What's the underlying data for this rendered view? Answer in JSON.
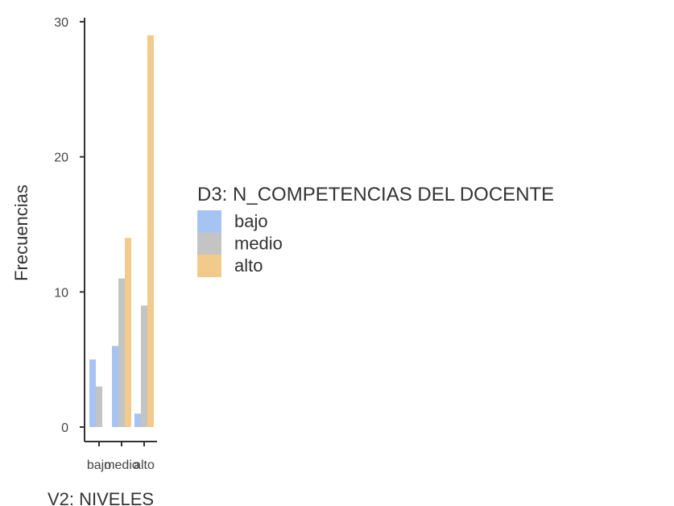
{
  "chart_data": {
    "type": "bar",
    "categories": [
      "bajo",
      "medio",
      "alto"
    ],
    "series": [
      {
        "name": "bajo",
        "values": [
          5,
          6,
          1
        ],
        "color": "#a6c4f2"
      },
      {
        "name": "medio",
        "values": [
          3,
          11,
          9
        ],
        "color": "#c4c4c4"
      },
      {
        "name": "alto",
        "values": [
          0,
          14,
          29
        ],
        "color": "#f2cb8c"
      }
    ],
    "title": "",
    "xlabel": "V2: NIVELES",
    "ylabel": "Frecuencias",
    "ylim": [
      0,
      30
    ],
    "yticks": [
      0,
      10,
      20,
      30
    ],
    "legend_title": "D3: N_COMPETENCIAS DEL DOCENTE",
    "legend_position": "right",
    "grid": false
  }
}
